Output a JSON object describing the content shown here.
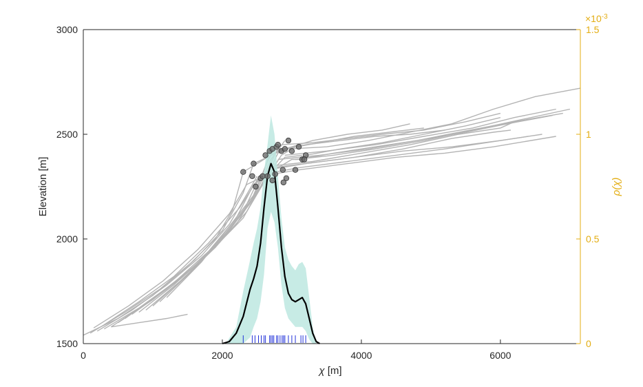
{
  "chart_data": {
    "type": "line",
    "xlabel_symbol": "χ",
    "xlabel_unit": " [m]",
    "ylabel": "Elevation [m]",
    "y2label": "ρ(χ)",
    "y2_multiplier": "×10",
    "y2_exponent": "-3",
    "xlim": [
      0,
      7150
    ],
    "ylim": [
      1500,
      3000
    ],
    "y2lim": [
      0,
      1.5
    ],
    "x_ticks": [
      "0",
      "2000",
      "4000",
      "6000"
    ],
    "y_ticks": [
      "1500",
      "2000",
      "2500",
      "3000"
    ],
    "y2_ticks": [
      "0",
      "0.5",
      "1",
      "1.5"
    ],
    "colors": {
      "profiles": "#b3b3b3",
      "knickpoints": "#6b6b6b",
      "density": "#000000",
      "band": "#bde8e0",
      "rug": "#1f2fd9",
      "right_axis": "#e3ad12",
      "axis": "#262626"
    },
    "profiles": [
      {
        "x": [
          0,
          500,
          1000,
          1500,
          1900,
          2150,
          2300
        ],
        "y": [
          1540,
          1620,
          1730,
          1870,
          2000,
          2140,
          2320
        ]
      },
      {
        "x": [
          100,
          600,
          1100,
          1600,
          2000,
          2300,
          2450
        ],
        "y": [
          1550,
          1650,
          1760,
          1900,
          2040,
          2220,
          2360
        ]
      },
      {
        "x": [
          200,
          700,
          1200,
          1700,
          2100,
          2400,
          2500
        ],
        "y": [
          1560,
          1660,
          1780,
          1920,
          2070,
          2240,
          2300
        ]
      },
      {
        "x": [
          300,
          800,
          1300,
          1800,
          2200,
          2450,
          2550
        ],
        "y": [
          1570,
          1670,
          1790,
          1940,
          2100,
          2260,
          2290
        ]
      },
      {
        "x": [
          400,
          900,
          1400,
          1900,
          2300,
          2500,
          2600
        ],
        "y": [
          1580,
          1690,
          1810,
          1960,
          2130,
          2270,
          2300
        ]
      },
      {
        "x": [
          500,
          1000,
          1500,
          2000,
          2400,
          2600,
          2700
        ],
        "y": [
          1600,
          1710,
          1840,
          2000,
          2170,
          2330,
          2420
        ]
      },
      {
        "x": [
          600,
          1100,
          1600,
          2100,
          2450,
          2650,
          2750
        ],
        "y": [
          1620,
          1740,
          1870,
          2040,
          2200,
          2370,
          2430
        ]
      },
      {
        "x": [
          700,
          1200,
          1700,
          2200,
          2500,
          2700,
          2850
        ],
        "y": [
          1640,
          1760,
          1900,
          2070,
          2230,
          2380,
          2450
        ]
      },
      {
        "x": [
          800,
          1300,
          1800,
          2300,
          2550,
          2750,
          2900
        ],
        "y": [
          1650,
          1780,
          1930,
          2100,
          2250,
          2400,
          2470
        ]
      },
      {
        "x": [
          900,
          1400,
          1900,
          2350,
          2600,
          2800,
          2950
        ],
        "y": [
          1660,
          1800,
          1960,
          2130,
          2270,
          2410,
          2430
        ]
      },
      {
        "x": [
          1000,
          1500,
          2000,
          2400,
          2650,
          2850,
          3050
        ],
        "y": [
          1680,
          1830,
          2000,
          2170,
          2300,
          2400,
          2440
        ]
      },
      {
        "x": [
          1100,
          1600,
          2050,
          2450,
          2700,
          2900,
          3150
        ],
        "y": [
          1700,
          1860,
          2030,
          2200,
          2320,
          2390,
          2400
        ]
      },
      {
        "x": [
          1200,
          1700,
          2100,
          2500,
          2750,
          3000,
          3200
        ],
        "y": [
          1720,
          1890,
          2060,
          2230,
          2330,
          2380,
          2380
        ]
      },
      {
        "x": [
          300,
          800,
          1300,
          1800,
          2250,
          2500,
          2750
        ],
        "y": [
          1590,
          1700,
          1820,
          1980,
          2150,
          2280,
          2360
        ]
      },
      {
        "x": [
          150,
          650,
          1150,
          1650,
          2100,
          2350,
          2600
        ],
        "y": [
          1575,
          1680,
          1800,
          1950,
          2120,
          2260,
          2300
        ]
      },
      {
        "x": [
          2300,
          2800,
          3300,
          3800,
          4300,
          4700
        ],
        "y": [
          2320,
          2420,
          2470,
          2500,
          2520,
          2550
        ]
      },
      {
        "x": [
          2450,
          2900,
          3400,
          3900,
          4400,
          4900
        ],
        "y": [
          2360,
          2430,
          2460,
          2490,
          2510,
          2530
        ]
      },
      {
        "x": [
          2700,
          3200,
          3700,
          4200,
          4700,
          5200
        ],
        "y": [
          2420,
          2450,
          2470,
          2490,
          2500,
          2520
        ]
      },
      {
        "x": [
          2850,
          3300,
          3800,
          4300,
          4900,
          5500,
          6000
        ],
        "y": [
          2450,
          2460,
          2480,
          2500,
          2520,
          2560,
          2600
        ]
      },
      {
        "x": [
          2950,
          3500,
          4100,
          4700,
          5300,
          5900,
          6500,
          7150
        ],
        "y": [
          2430,
          2440,
          2470,
          2510,
          2550,
          2620,
          2680,
          2720
        ]
      },
      {
        "x": [
          2900,
          3500,
          4200,
          4900,
          5600,
          6200,
          6800
        ],
        "y": [
          2400,
          2420,
          2450,
          2490,
          2530,
          2580,
          2620
        ]
      },
      {
        "x": [
          2800,
          3400,
          4100,
          4800,
          5500,
          6100,
          6750
        ],
        "y": [
          2380,
          2400,
          2430,
          2470,
          2510,
          2550,
          2590
        ]
      },
      {
        "x": [
          2750,
          3300,
          4000,
          4700,
          5400,
          6000,
          6200
        ],
        "y": [
          2350,
          2370,
          2410,
          2450,
          2500,
          2530,
          2560
        ]
      },
      {
        "x": [
          2650,
          3200,
          3900,
          4600,
          5300,
          5900,
          6150
        ],
        "y": [
          2330,
          2360,
          2390,
          2430,
          2480,
          2510,
          2520
        ]
      },
      {
        "x": [
          2600,
          3100,
          3800,
          4500,
          5200,
          5800,
          6400
        ],
        "y": [
          2310,
          2340,
          2370,
          2400,
          2430,
          2460,
          2490
        ]
      },
      {
        "x": [
          2550,
          3100,
          3800,
          4500,
          5200,
          5900,
          6800
        ],
        "y": [
          2300,
          2330,
          2360,
          2390,
          2410,
          2440,
          2490
        ]
      },
      {
        "x": [
          2700,
          3200,
          3900,
          4600,
          5300,
          6000,
          6600
        ],
        "y": [
          2340,
          2360,
          2390,
          2420,
          2440,
          2470,
          2500
        ]
      },
      {
        "x": [
          3200,
          3700,
          4300,
          4900,
          5500,
          6000
        ],
        "y": [
          2400,
          2430,
          2460,
          2500,
          2540,
          2580
        ]
      },
      {
        "x": [
          3100,
          3600,
          4200,
          4800,
          5400,
          6200,
          6900
        ],
        "y": [
          2380,
          2410,
          2440,
          2470,
          2510,
          2560,
          2600
        ]
      },
      {
        "x": [
          3050,
          3600,
          4200,
          4900,
          5600,
          6300,
          7000
        ],
        "y": [
          2380,
          2400,
          2430,
          2470,
          2520,
          2570,
          2620
        ]
      },
      {
        "x": [
          400,
          800,
          1200,
          1500
        ],
        "y": [
          1580,
          1600,
          1620,
          1640
        ]
      }
    ],
    "knickpoints": [
      {
        "x": 2300,
        "y": 2320
      },
      {
        "x": 2450,
        "y": 2360
      },
      {
        "x": 2430,
        "y": 2300
      },
      {
        "x": 2480,
        "y": 2250
      },
      {
        "x": 2550,
        "y": 2290
      },
      {
        "x": 2580,
        "y": 2300
      },
      {
        "x": 2620,
        "y": 2400
      },
      {
        "x": 2680,
        "y": 2420
      },
      {
        "x": 2720,
        "y": 2430
      },
      {
        "x": 2780,
        "y": 2440
      },
      {
        "x": 2800,
        "y": 2450
      },
      {
        "x": 2850,
        "y": 2420
      },
      {
        "x": 2900,
        "y": 2430
      },
      {
        "x": 2950,
        "y": 2470
      },
      {
        "x": 3000,
        "y": 2420
      },
      {
        "x": 3100,
        "y": 2440
      },
      {
        "x": 3150,
        "y": 2380
      },
      {
        "x": 3200,
        "y": 2400
      },
      {
        "x": 3180,
        "y": 2380
      },
      {
        "x": 3050,
        "y": 2330
      },
      {
        "x": 2870,
        "y": 2330
      },
      {
        "x": 2920,
        "y": 2290
      },
      {
        "x": 2880,
        "y": 2270
      },
      {
        "x": 2650,
        "y": 2300
      },
      {
        "x": 2720,
        "y": 2280
      },
      {
        "x": 2760,
        "y": 2310
      }
    ],
    "density": {
      "x": [
        2000,
        2100,
        2200,
        2300,
        2400,
        2450,
        2500,
        2550,
        2600,
        2650,
        2700,
        2750,
        2800,
        2850,
        2900,
        2950,
        3000,
        3050,
        3100,
        3150,
        3200,
        3250,
        3300,
        3350,
        3400
      ],
      "y": [
        0,
        0.01,
        0.05,
        0.13,
        0.26,
        0.31,
        0.37,
        0.48,
        0.65,
        0.8,
        0.86,
        0.82,
        0.65,
        0.46,
        0.32,
        0.24,
        0.21,
        0.2,
        0.21,
        0.22,
        0.19,
        0.12,
        0.05,
        0.01,
        0
      ]
    },
    "band": {
      "x": [
        2050,
        2200,
        2300,
        2400,
        2450,
        2500,
        2550,
        2600,
        2650,
        2700,
        2750,
        2800,
        2850,
        2900,
        2950,
        3000,
        3050,
        3100,
        3150,
        3200,
        3250,
        3300,
        3350
      ],
      "upper": [
        0,
        0.08,
        0.25,
        0.4,
        0.48,
        0.55,
        0.65,
        0.82,
        0.95,
        1.09,
        1.0,
        0.8,
        0.6,
        0.46,
        0.4,
        0.37,
        0.35,
        0.38,
        0.39,
        0.36,
        0.22,
        0.08,
        0
      ],
      "lower": [
        0,
        0,
        0,
        0.03,
        0.08,
        0.12,
        0.2,
        0.33,
        0.55,
        0.63,
        0.58,
        0.46,
        0.28,
        0.17,
        0.12,
        0.1,
        0.08,
        0.08,
        0.08,
        0.06,
        0.02,
        0,
        0
      ]
    },
    "rug": [
      2300,
      2430,
      2470,
      2520,
      2560,
      2600,
      2620,
      2680,
      2700,
      2720,
      2740,
      2780,
      2800,
      2830,
      2860,
      2880,
      2900,
      2950,
      3000,
      3050,
      3130,
      3160,
      3200
    ]
  }
}
